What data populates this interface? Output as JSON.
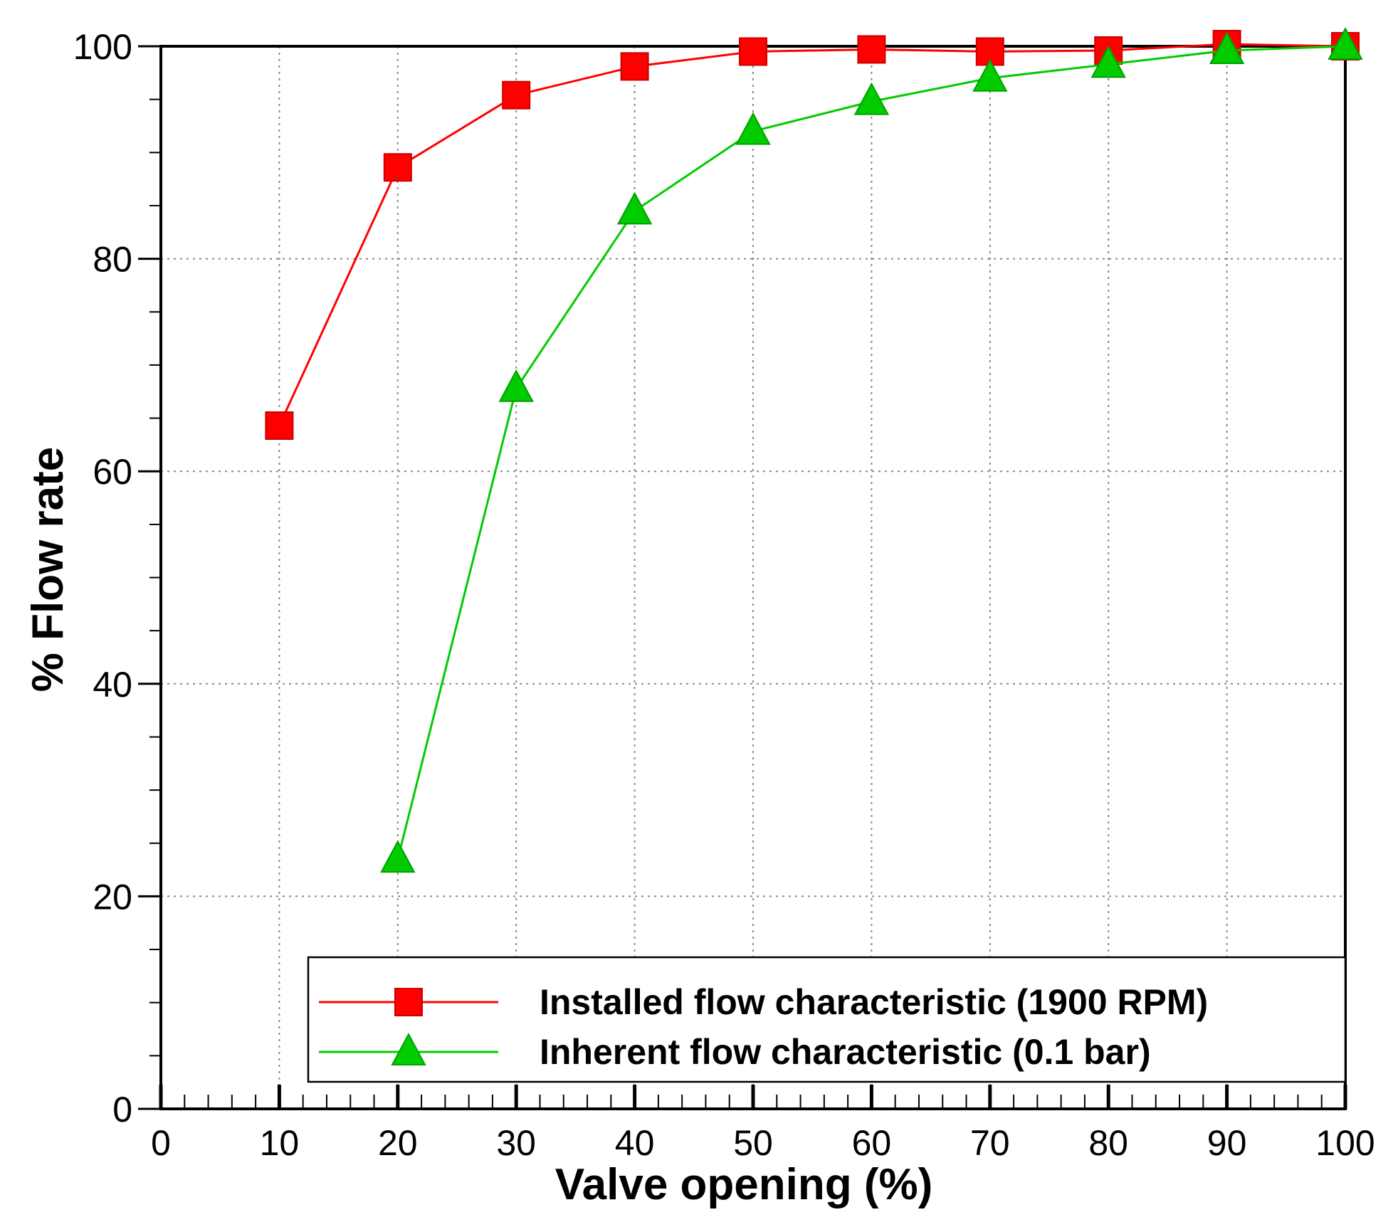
{
  "chart_data": {
    "type": "line",
    "xlabel": "Valve opening (%)",
    "ylabel": "% Flow rate",
    "xlim": [
      0,
      100
    ],
    "ylim": [
      0,
      100
    ],
    "x_ticks": [
      "0",
      "10",
      "20",
      "30",
      "40",
      "50",
      "60",
      "70",
      "80",
      "90",
      "100"
    ],
    "y_ticks": [
      "0",
      "20",
      "40",
      "60",
      "80",
      "100"
    ],
    "grid": true,
    "legend_position": "bottom-right",
    "series": [
      {
        "name": "Installed flow characteristic (1900 RPM)",
        "color": "#ff0000",
        "marker": "square",
        "x": [
          10,
          20,
          30,
          40,
          50,
          60,
          70,
          80,
          90,
          100
        ],
        "y": [
          64.3,
          88.6,
          95.4,
          98.1,
          99.5,
          99.7,
          99.5,
          99.6,
          100.2,
          100.0
        ]
      },
      {
        "name": "Inherent flow characteristic (0.1 bar)",
        "color": "#00cc00",
        "marker": "triangle",
        "x": [
          20,
          30,
          40,
          50,
          60,
          70,
          80,
          90,
          100
        ],
        "y": [
          23.5,
          67.8,
          84.5,
          92.0,
          94.8,
          97.0,
          98.3,
          99.6,
          100.0
        ]
      }
    ]
  }
}
